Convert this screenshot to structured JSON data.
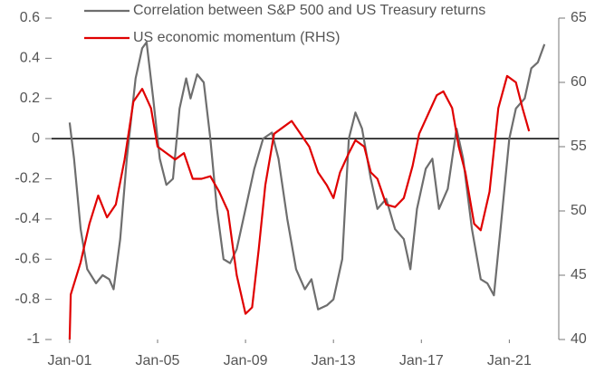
{
  "chart_data": {
    "type": "line",
    "series": [
      {
        "name": "Correlation between S&P 500 and US Treasury returns",
        "color": "#6e6e6e",
        "axis": "y",
        "x": [
          2001.0,
          2001.2,
          2001.5,
          2001.8,
          2002.2,
          2002.5,
          2002.8,
          2003.0,
          2003.3,
          2003.6,
          2004.0,
          2004.3,
          2004.5,
          2004.8,
          2005.1,
          2005.4,
          2005.7,
          2006.0,
          2006.3,
          2006.5,
          2006.8,
          2007.1,
          2007.4,
          2007.7,
          2008.0,
          2008.3,
          2008.6,
          2009.0,
          2009.4,
          2009.8,
          2010.2,
          2010.5,
          2010.9,
          2011.3,
          2011.7,
          2012.0,
          2012.3,
          2012.7,
          2013.0,
          2013.4,
          2013.7,
          2014.0,
          2014.3,
          2014.7,
          2015.0,
          2015.4,
          2015.8,
          2016.2,
          2016.5,
          2016.8,
          2017.2,
          2017.5,
          2017.8,
          2018.2,
          2018.6,
          2018.9,
          2019.3,
          2019.7,
          2020.0,
          2020.3,
          2020.6,
          2021.0,
          2021.3,
          2021.7,
          2022.0,
          2022.3,
          2022.6
        ],
        "values": [
          0.08,
          -0.1,
          -0.45,
          -0.65,
          -0.72,
          -0.68,
          -0.7,
          -0.75,
          -0.5,
          -0.1,
          0.3,
          0.45,
          0.48,
          0.2,
          -0.1,
          -0.23,
          -0.2,
          0.15,
          0.3,
          0.2,
          0.32,
          0.28,
          0.0,
          -0.35,
          -0.6,
          -0.62,
          -0.55,
          -0.35,
          -0.15,
          0.0,
          0.03,
          -0.1,
          -0.4,
          -0.65,
          -0.75,
          -0.7,
          -0.85,
          -0.83,
          -0.8,
          -0.6,
          0.0,
          0.13,
          0.05,
          -0.2,
          -0.35,
          -0.3,
          -0.45,
          -0.5,
          -0.65,
          -0.35,
          -0.15,
          -0.1,
          -0.35,
          -0.25,
          0.05,
          -0.1,
          -0.45,
          -0.7,
          -0.72,
          -0.78,
          -0.45,
          0.0,
          0.15,
          0.2,
          0.35,
          0.38,
          0.47
        ]
      },
      {
        "name": "US economic momentum (RHS)",
        "color": "#e00000",
        "axis": "y2",
        "x": [
          2001.0,
          2001.05,
          2001.5,
          2001.9,
          2002.3,
          2002.7,
          2003.1,
          2003.5,
          2003.9,
          2004.3,
          2004.7,
          2005.0,
          2005.4,
          2005.8,
          2006.2,
          2006.6,
          2007.0,
          2007.4,
          2007.8,
          2008.2,
          2008.6,
          2009.0,
          2009.3,
          2009.6,
          2009.9,
          2010.3,
          2010.7,
          2011.1,
          2011.5,
          2011.9,
          2012.3,
          2012.7,
          2013.0,
          2013.3,
          2013.7,
          2014.0,
          2014.4,
          2014.7,
          2015.0,
          2015.4,
          2015.8,
          2016.2,
          2016.6,
          2016.9,
          2017.3,
          2017.7,
          2018.0,
          2018.4,
          2018.7,
          2019.0,
          2019.4,
          2019.7,
          2020.1,
          2020.5,
          2020.9,
          2021.3,
          2021.6,
          2021.9
        ],
        "values": [
          40,
          43.5,
          46,
          49,
          51.2,
          49.5,
          50.5,
          54,
          58.5,
          59.5,
          58,
          55,
          54.5,
          54,
          54.5,
          52.5,
          52.5,
          52.7,
          51.5,
          50,
          45,
          42,
          42.5,
          47,
          52,
          56,
          56.5,
          57,
          56,
          55,
          53,
          52,
          51,
          53,
          54.5,
          55.5,
          55,
          53,
          52.5,
          50.5,
          50.3,
          51,
          53.5,
          56,
          57.5,
          59,
          59.3,
          58,
          55,
          53,
          49,
          48.5,
          51.5,
          58,
          60.5,
          60,
          58,
          56.2
        ]
      }
    ],
    "xlim": [
      2000.18,
      2023.25
    ],
    "xticks": [
      {
        "value": 2001,
        "label": "Jan-01"
      },
      {
        "value": 2005,
        "label": "Jan-05"
      },
      {
        "value": 2009,
        "label": "Jan-09"
      },
      {
        "value": 2013,
        "label": "Jan-13"
      },
      {
        "value": 2017,
        "label": "Jan-17"
      },
      {
        "value": 2021,
        "label": "Jan-21"
      }
    ],
    "ylim": [
      -1,
      0.6
    ],
    "yticks": [
      -1,
      -0.8,
      -0.6,
      -0.4,
      -0.2,
      0,
      0.2,
      0.4,
      0.6
    ],
    "y2lim": [
      40,
      65
    ],
    "y2ticks": [
      40,
      45,
      50,
      55,
      60,
      65
    ],
    "legend": "top-left"
  }
}
